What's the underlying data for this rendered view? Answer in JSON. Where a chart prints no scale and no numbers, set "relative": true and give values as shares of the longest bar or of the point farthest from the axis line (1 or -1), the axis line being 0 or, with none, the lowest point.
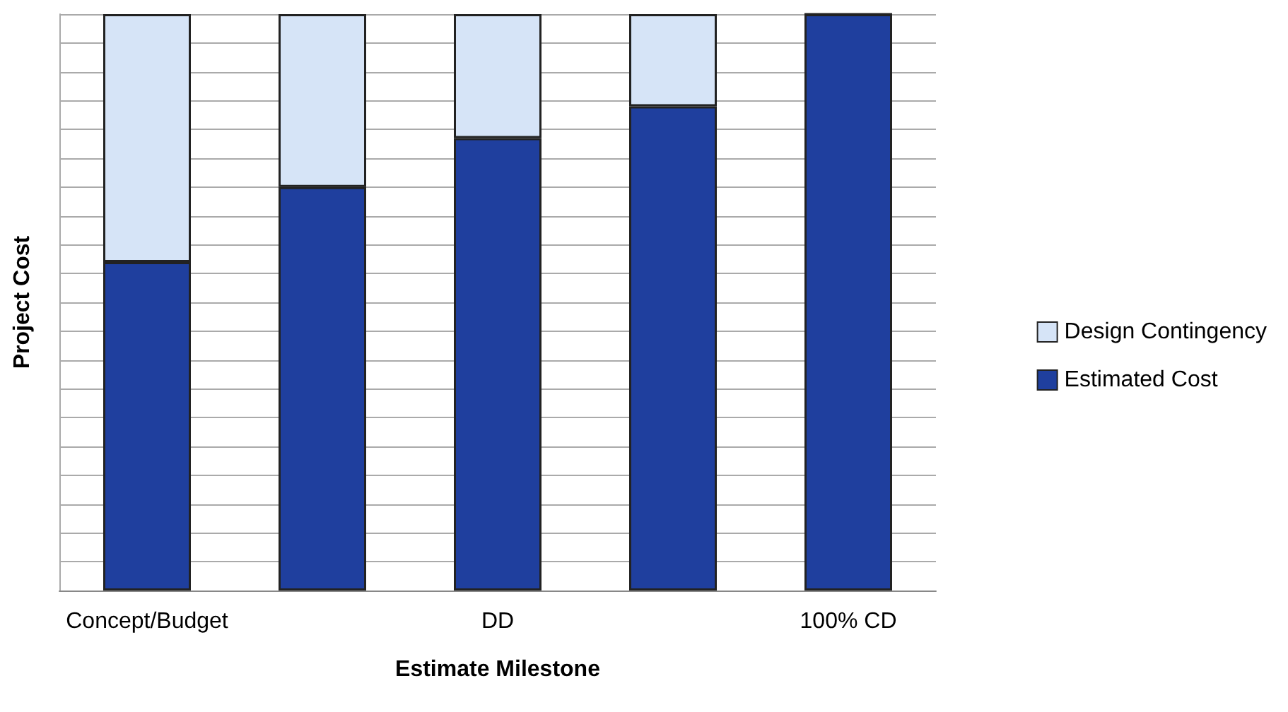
{
  "chart_data": {
    "type": "bar",
    "stacked": true,
    "relative": true,
    "xlabel": "Estimate Milestone",
    "ylabel": "Project Cost",
    "categories": [
      "Concept/Budget",
      null,
      "DD",
      null,
      "100% CD"
    ],
    "series": [
      {
        "name": "Estimated Cost",
        "color": "#1f3f9e",
        "values": [
          0.57,
          0.7,
          0.785,
          0.84,
          1.0
        ]
      },
      {
        "name": "Design Contingency",
        "color": "#d6e4f7",
        "values": [
          0.43,
          0.3,
          0.215,
          0.16,
          0
        ]
      }
    ],
    "grid": "y",
    "legend": "right"
  }
}
